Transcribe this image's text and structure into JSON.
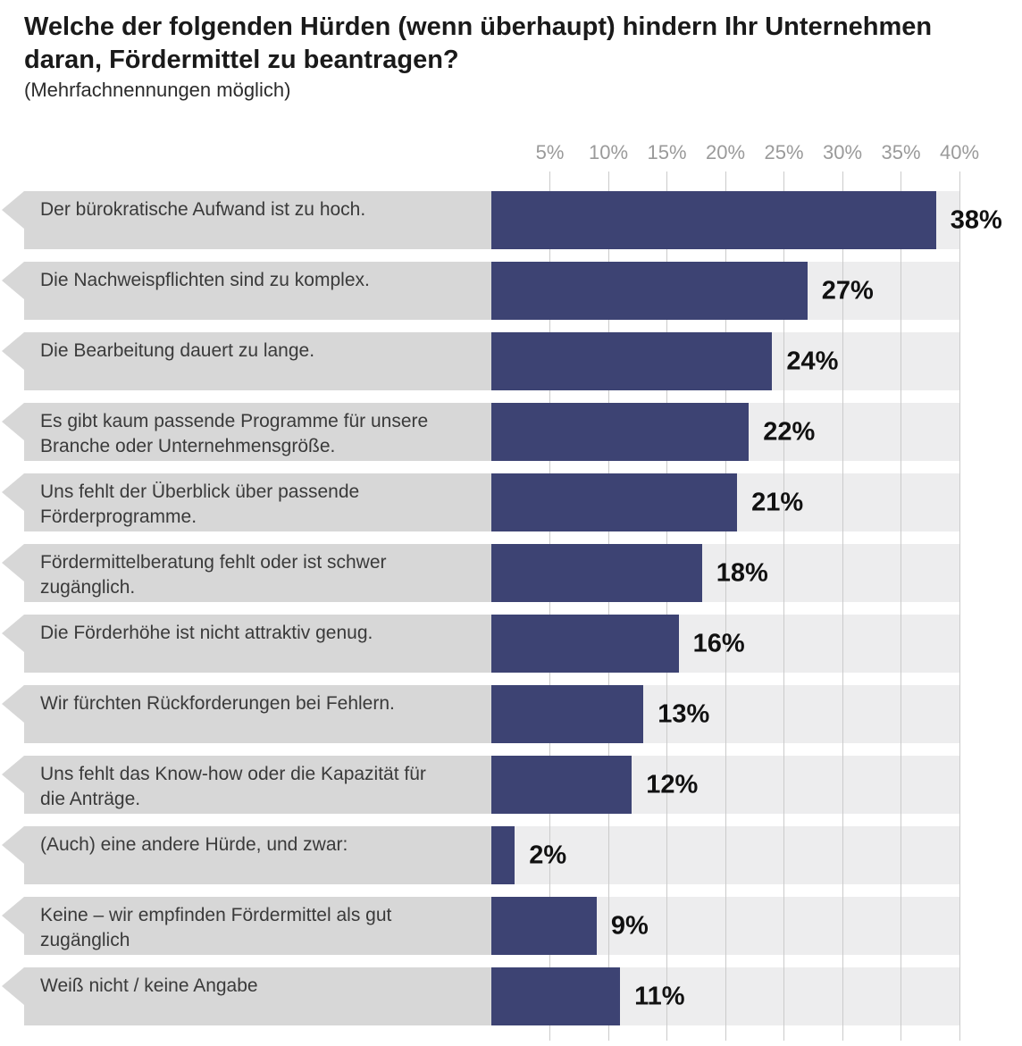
{
  "header": {
    "title": "Welche der folgenden Hürden (wenn überhaupt) hindern Ihr Unternehmen daran, Fördermittel zu beantragen?",
    "subtitle": "(Mehrfachnennungen möglich)"
  },
  "chart_data": {
    "type": "bar",
    "orientation": "horizontal",
    "title": "Welche der folgenden Hürden (wenn überhaupt) hindern Ihr Unternehmen daran, Fördermittel zu beantragen?",
    "subtitle": "(Mehrfachnennungen möglich)",
    "categories": [
      "Der bürokratische Aufwand ist zu hoch.",
      "Die Nachweispflichten sind zu komplex.",
      "Die Bearbeitung dauert zu lange.",
      "Es gibt kaum passende Programme für unsere Branche oder Unternehmensgröße.",
      "Uns fehlt der Überblick über passende Förderprogramme.",
      "Fördermittelberatung fehlt oder ist schwer zugänglich.",
      "Die Förderhöhe ist nicht attraktiv genug.",
      "Wir fürchten Rückforderungen bei Fehlern.",
      "Uns fehlt das Know-how oder die Kapazität für die Anträge.",
      "(Auch) eine andere Hürde, und zwar:",
      "Keine – wir empfinden Fördermittel als gut zugänglich",
      "Weiß nicht / keine Angabe"
    ],
    "values": [
      38,
      27,
      24,
      22,
      21,
      18,
      16,
      13,
      12,
      2,
      9,
      11
    ],
    "value_labels": [
      "38%",
      "27%",
      "24%",
      "22%",
      "21%",
      "18%",
      "16%",
      "13%",
      "12%",
      "2%",
      "9%",
      "11%"
    ],
    "axis": {
      "unit": "%",
      "min": 0,
      "max": 40,
      "ticks": [
        5,
        10,
        15,
        20,
        25,
        30,
        35,
        40
      ],
      "tick_labels": [
        "5%",
        "10%",
        "15%",
        "20%",
        "25%",
        "30%",
        "35%",
        "40%"
      ],
      "grid": true,
      "tick_position": "top"
    },
    "legend": null,
    "colors": {
      "bar": "#3d4373",
      "track": "#ededee",
      "label_box": "#d7d7d7",
      "gridline": "#cbcbcb",
      "axis_text": "#9a9a9a",
      "title_text": "#1a1a1a",
      "label_text": "#3a3a3a",
      "value_text": "#111111"
    }
  }
}
